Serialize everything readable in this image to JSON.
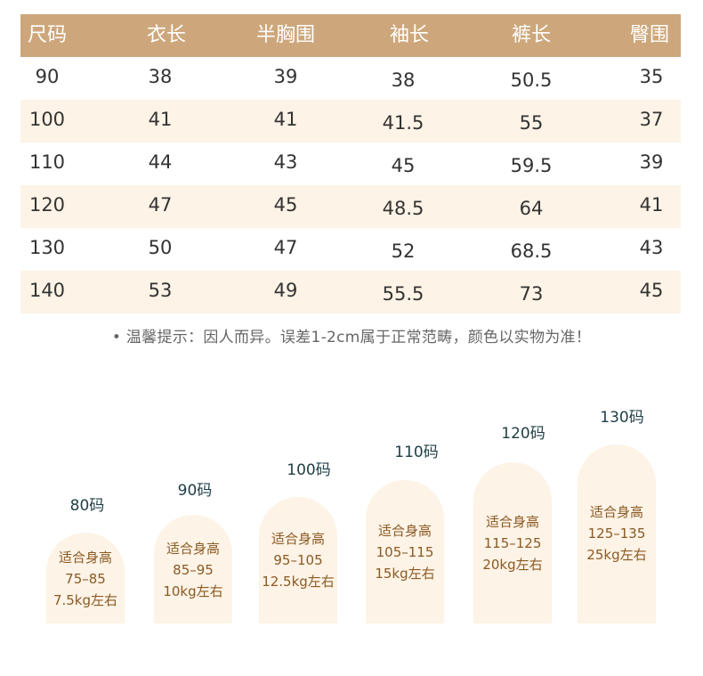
{
  "table": {
    "headers": [
      "尺码",
      "衣长",
      "半胸围",
      "袖长",
      "裤长",
      "臀围"
    ],
    "rows": [
      [
        "90",
        "38",
        "39",
        "38",
        "50.5",
        "35"
      ],
      [
        "100",
        "41",
        "41",
        "41.5",
        "55",
        "37"
      ],
      [
        "110",
        "44",
        "43",
        "45",
        "59.5",
        "39"
      ],
      [
        "120",
        "47",
        "45",
        "48.5",
        "64",
        "41"
      ],
      [
        "130",
        "50",
        "47",
        "52",
        "68.5",
        "43"
      ],
      [
        "140",
        "53",
        "49",
        "55.5",
        "73",
        "45"
      ]
    ]
  },
  "note": "• 温馨提示：因人而异。误差1-2cm属于正常范畴，颜色以实物为准！",
  "size_guide": [
    {
      "size": "80码",
      "line1": "适合身高",
      "line2": "75–85",
      "line3": "7.5kg左右"
    },
    {
      "size": "90码",
      "line1": "适合身高",
      "line2": "85–95",
      "line3": "10kg左右"
    },
    {
      "size": "100码",
      "line1": "适合身高",
      "line2": "95–105",
      "line3": "12.5kg左右"
    },
    {
      "size": "110码",
      "line1": "适合身高",
      "line2": "105–115",
      "line3": "15kg左右"
    },
    {
      "size": "120码",
      "line1": "适合身高",
      "line2": "115–125",
      "line3": "20kg左右"
    },
    {
      "size": "130码",
      "line1": "适合身高",
      "line2": "125–135",
      "line3": "25kg左右"
    }
  ],
  "colors": {
    "header_bg": "#cda77b",
    "row_alt_bg": "#fdf3e6",
    "bar_bg": "#fdf3e6",
    "bar_text": "#8a5a24",
    "size_label": "#1f3d44"
  }
}
